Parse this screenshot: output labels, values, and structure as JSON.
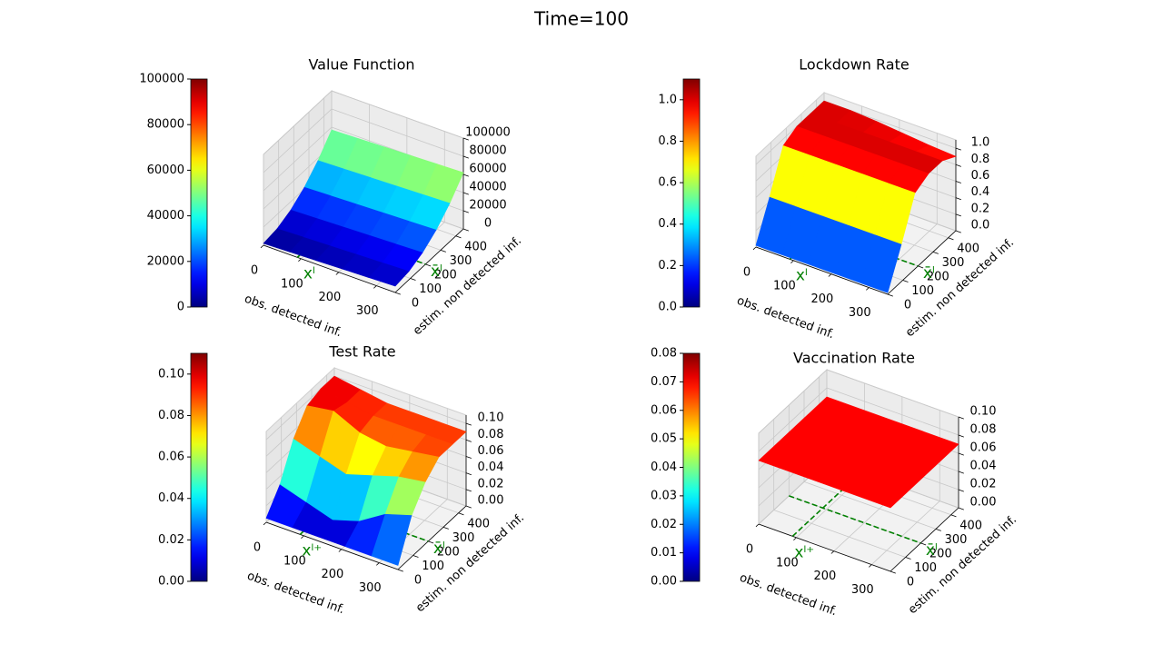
{
  "suptitle": "Time=100",
  "chart_data": [
    {
      "type": "surface3d",
      "title": "Value Function",
      "xlabel": "obs. detected inf.",
      "ylabel": "estim. non detected inf.",
      "x": [
        0,
        70,
        140,
        210,
        280,
        350
      ],
      "y": [
        0,
        90,
        180,
        270,
        360,
        450
      ],
      "z": [
        [
          2000,
          3000,
          4000,
          5000,
          6000,
          7000
        ],
        [
          4200,
          5200,
          6200,
          7200,
          8200,
          9200
        ],
        [
          10800,
          11800,
          12800,
          13800,
          14800,
          15800
        ],
        [
          21800,
          22800,
          23800,
          24800,
          25800,
          26800
        ],
        [
          37200,
          38200,
          39200,
          40200,
          41200,
          42200
        ],
        [
          57000,
          58000,
          59000,
          60000,
          61000,
          62000
        ]
      ],
      "xlim": [
        0,
        350
      ],
      "ylim": [
        0,
        450
      ],
      "zlim": [
        0,
        100000
      ],
      "xticks": [
        0,
        100,
        200,
        300
      ],
      "yticks": [
        0,
        100,
        200,
        300,
        400
      ],
      "zticks": [
        0,
        20000,
        40000,
        60000,
        80000,
        100000
      ],
      "colormap": "jet",
      "clim": [
        0,
        100000
      ],
      "cticks": [
        0,
        20000,
        40000,
        60000,
        80000,
        100000
      ],
      "thresholds": [
        {
          "axis": "x",
          "value": 90,
          "label": "xˡ",
          "color": "#008000"
        },
        {
          "axis": "y",
          "value": 200,
          "label": "x̄ˡ",
          "color": "#008000"
        }
      ]
    },
    {
      "type": "surface3d",
      "title": "Lockdown Rate",
      "xlabel": "obs. detected inf.",
      "ylabel": "estim. non detected inf.",
      "x": [
        0,
        70,
        140,
        210,
        280,
        350
      ],
      "y": [
        0,
        90,
        180,
        270,
        360,
        450
      ],
      "z": [
        [
          0.02,
          0.02,
          0.02,
          0.02,
          0.02,
          0.02
        ],
        [
          0.45,
          0.45,
          0.45,
          0.45,
          0.45,
          0.45
        ],
        [
          0.92,
          0.92,
          0.92,
          0.92,
          0.92,
          0.92
        ],
        [
          1.0,
          1.0,
          1.0,
          1.0,
          1.0,
          1.0
        ],
        [
          1.0,
          1.0,
          1.0,
          1.0,
          1.0,
          1.0
        ],
        [
          1.0,
          1.0,
          0.98,
          0.95,
          0.92,
          0.9
        ]
      ],
      "xlim": [
        0,
        350
      ],
      "ylim": [
        0,
        450
      ],
      "zlim": [
        0,
        1.1
      ],
      "xticks": [
        0,
        100,
        200,
        300
      ],
      "yticks": [
        0,
        100,
        200,
        300,
        400
      ],
      "zticks": [
        {
          "value": 0,
          "label": "0.0"
        },
        0.2,
        0.4,
        0.6,
        0.8,
        {
          "value": 1,
          "label": "1.0"
        }
      ],
      "colormap": "jet",
      "clim": [
        0,
        1.1
      ],
      "cticks": [
        {
          "value": 0,
          "label": "0.0"
        },
        0.2,
        0.4,
        0.6,
        0.8,
        {
          "value": 1,
          "label": "1.0"
        }
      ],
      "thresholds": [
        {
          "axis": "x",
          "value": 90,
          "label": "xˡ",
          "color": "#008000"
        },
        {
          "axis": "y",
          "value": 200,
          "label": "x̄ˡ",
          "color": "#008000"
        }
      ]
    },
    {
      "type": "surface3d",
      "title": "Test Rate",
      "xlabel": "obs. detected inf.",
      "ylabel": "estim. non detected inf.",
      "x": [
        0,
        70,
        140,
        210,
        280,
        350
      ],
      "y": [
        0,
        90,
        180,
        270,
        360,
        450
      ],
      "z": [
        [
          0.005,
          0.005,
          0.005,
          0.005,
          0.005,
          0.005
        ],
        [
          0.03,
          0.02,
          0.01,
          0.02,
          0.04,
          0.05
        ],
        [
          0.07,
          0.06,
          0.05,
          0.06,
          0.07,
          0.075
        ],
        [
          0.095,
          0.1,
          0.085,
          0.08,
          0.085,
          0.09
        ],
        [
          0.1,
          0.095,
          0.09,
          0.09,
          0.09,
          0.09
        ],
        [
          0.1,
          0.095,
          0.09,
          0.09,
          0.09,
          0.09
        ]
      ],
      "xlim": [
        0,
        350
      ],
      "ylim": [
        0,
        450
      ],
      "zlim": [
        0,
        0.11
      ],
      "xticks": [
        0,
        100,
        200,
        300
      ],
      "yticks": [
        0,
        100,
        200,
        300,
        400
      ],
      "zticks": [
        {
          "value": 0,
          "label": "0.00"
        },
        {
          "value": 0.02,
          "label": "0.02"
        },
        {
          "value": 0.04,
          "label": "0.04"
        },
        {
          "value": 0.06,
          "label": "0.06"
        },
        {
          "value": 0.08,
          "label": "0.08"
        },
        {
          "value": 0.1,
          "label": "0.10"
        }
      ],
      "colormap": "jet",
      "clim": [
        0,
        0.11
      ],
      "cticks": [
        {
          "value": 0,
          "label": "0.00"
        },
        {
          "value": 0.02,
          "label": "0.02"
        },
        {
          "value": 0.04,
          "label": "0.04"
        },
        {
          "value": 0.06,
          "label": "0.06"
        },
        {
          "value": 0.08,
          "label": "0.08"
        },
        {
          "value": 0.1,
          "label": "0.10"
        }
      ],
      "thresholds": [
        {
          "axis": "x",
          "value": 90,
          "label": "xˡ⁺",
          "color": "#008000"
        },
        {
          "axis": "y",
          "value": 200,
          "label": "x̄ˡ",
          "color": "#008000"
        }
      ]
    },
    {
      "type": "surface3d",
      "title": "Vaccination Rate",
      "xlabel": "obs. detected inf.",
      "ylabel": "estim. non detected inf.",
      "x": [
        0,
        350
      ],
      "y": [
        0,
        450
      ],
      "z": [
        [
          0.07,
          0.07
        ],
        [
          0.07,
          0.07
        ]
      ],
      "xlim": [
        0,
        350
      ],
      "ylim": [
        0,
        450
      ],
      "zlim": [
        0,
        0.1
      ],
      "xticks": [
        0,
        100,
        200,
        300
      ],
      "yticks": [
        0,
        100,
        200,
        300,
        400
      ],
      "zticks": [
        {
          "value": 0,
          "label": "0.00"
        },
        {
          "value": 0.02,
          "label": "0.02"
        },
        {
          "value": 0.04,
          "label": "0.04"
        },
        {
          "value": 0.06,
          "label": "0.06"
        },
        {
          "value": 0.08,
          "label": "0.08"
        },
        {
          "value": 0.1,
          "label": "0.10"
        }
      ],
      "colormap": "jet",
      "clim": [
        0,
        0.08
      ],
      "cticks": [
        {
          "value": 0,
          "label": "0.00"
        },
        {
          "value": 0.01,
          "label": "0.01"
        },
        {
          "value": 0.02,
          "label": "0.02"
        },
        {
          "value": 0.03,
          "label": "0.03"
        },
        {
          "value": 0.04,
          "label": "0.04"
        },
        {
          "value": 0.05,
          "label": "0.05"
        },
        {
          "value": 0.06,
          "label": "0.06"
        },
        {
          "value": 0.07,
          "label": "0.07"
        },
        {
          "value": 0.08,
          "label": "0.08"
        }
      ],
      "thresholds": [
        {
          "axis": "x",
          "value": 90,
          "label": "xˡ⁺",
          "color": "#008000"
        },
        {
          "axis": "y",
          "value": 200,
          "label": "x̄ˡ",
          "color": "#008000"
        }
      ]
    }
  ]
}
